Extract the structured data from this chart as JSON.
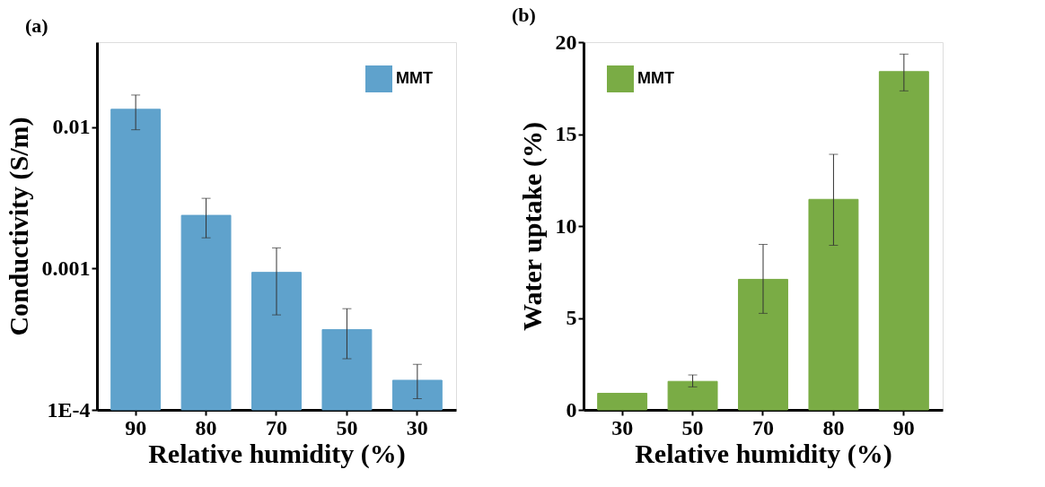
{
  "chart_data": [
    {
      "type": "bar",
      "title": "(a)",
      "xlabel": "Relative humidity (%)",
      "ylabel": "Conductivity (S/m)",
      "categories": [
        "90",
        "80",
        "70",
        "50",
        "30"
      ],
      "series": [
        {
          "name": "MMT",
          "color": "#5fa2cc",
          "values": [
            0.0134,
            0.00238,
            0.00094,
            0.00037,
            0.000162
          ],
          "errors": [
            [
              0.0096,
              0.0169
            ],
            [
              0.00165,
              0.00314
            ],
            [
              0.00047,
              0.0014
            ],
            [
              0.00023,
              0.00052
            ],
            [
              0.00012,
              0.00021
            ]
          ]
        }
      ],
      "log": "y",
      "ylim": [
        0.0001,
        0.04
      ],
      "yticks": [
        {
          "value": 0.0001,
          "label": "1E-4"
        },
        0.001,
        0.01
      ],
      "legend": "top right",
      "grid": false
    },
    {
      "type": "bar",
      "title": "(b)",
      "xlabel": "Relative humidity (%)",
      "ylabel": "Water uptake (%)",
      "categories": [
        "30",
        "50",
        "70",
        "80",
        "90"
      ],
      "series": [
        {
          "name": "MMT",
          "color": "#7aac45",
          "values": [
            0.9,
            1.55,
            7.1,
            11.45,
            18.4
          ],
          "errors": [
            null,
            [
              1.25,
              1.9
            ],
            [
              5.25,
              9.0
            ],
            [
              8.95,
              13.9
            ],
            [
              17.35,
              19.35
            ]
          ]
        }
      ],
      "ylim": [
        0,
        20
      ],
      "yticks": [
        0,
        5,
        10,
        15,
        20
      ],
      "legend": "top left",
      "grid": false
    }
  ]
}
